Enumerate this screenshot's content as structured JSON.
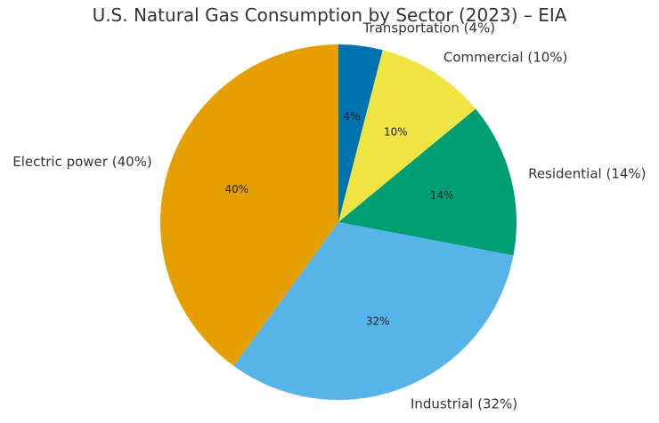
{
  "chart_data": {
    "type": "pie",
    "title": "U.S. Natural Gas Consumption by Sector (2023) – EIA",
    "start_angle_deg": 90,
    "direction": "clockwise",
    "slices": [
      {
        "label": "Transportation (4%)",
        "pct_label": "4%",
        "value": 4,
        "color": "#0072B2"
      },
      {
        "label": "Commercial (10%)",
        "pct_label": "10%",
        "value": 10,
        "color": "#F0E442"
      },
      {
        "label": "Residential (14%)",
        "pct_label": "14%",
        "value": 14,
        "color": "#009E73"
      },
      {
        "label": "Industrial (32%)",
        "pct_label": "32%",
        "value": 32,
        "color": "#56B4E9"
      },
      {
        "label": "Electric power (40%)",
        "pct_label": "40%",
        "value": 40,
        "color": "#E69F00"
      }
    ]
  }
}
